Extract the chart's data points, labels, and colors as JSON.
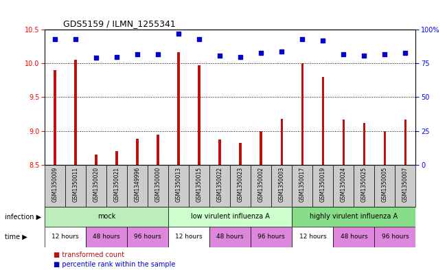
{
  "title": "GDS5159 / ILMN_1255341",
  "samples": [
    "GSM1350009",
    "GSM1350011",
    "GSM1350020",
    "GSM1350021",
    "GSM1349996",
    "GSM1350000",
    "GSM1350013",
    "GSM1350015",
    "GSM1350022",
    "GSM1350023",
    "GSM1350002",
    "GSM1350003",
    "GSM1350017",
    "GSM1350019",
    "GSM1350024",
    "GSM1350025",
    "GSM1350005",
    "GSM1350007"
  ],
  "transformed_count": [
    9.9,
    10.05,
    8.65,
    8.7,
    8.88,
    8.95,
    10.17,
    9.97,
    8.87,
    8.82,
    9.0,
    9.18,
    10.0,
    9.8,
    9.17,
    9.12,
    9.0,
    9.17
  ],
  "percentile_rank": [
    93,
    93,
    79,
    80,
    82,
    82,
    97,
    93,
    81,
    80,
    83,
    84,
    93,
    92,
    82,
    81,
    82,
    83
  ],
  "ylim_left": [
    8.5,
    10.5
  ],
  "ylim_right": [
    0,
    100
  ],
  "yticks_left": [
    8.5,
    9.0,
    9.5,
    10.0,
    10.5
  ],
  "yticks_right": [
    0,
    25,
    50,
    75,
    100
  ],
  "bar_color": "#bb1111",
  "scatter_color": "#0000cc",
  "bar_width": 0.12,
  "infection_groups": [
    {
      "label": "mock",
      "start": 0,
      "end": 6,
      "color": "#bbeebb"
    },
    {
      "label": "low virulent influenza A",
      "start": 6,
      "end": 12,
      "color": "#ccffcc"
    },
    {
      "label": "highly virulent influenza A",
      "start": 12,
      "end": 18,
      "color": "#88dd88"
    }
  ],
  "time_labels_colors": [
    [
      "12 hours",
      "#ffffff"
    ],
    [
      "48 hours",
      "#dd88dd"
    ],
    [
      "96 hours",
      "#dd88dd"
    ],
    [
      "12 hours",
      "#ffffff"
    ],
    [
      "48 hours",
      "#dd88dd"
    ],
    [
      "96 hours",
      "#dd88dd"
    ],
    [
      "12 hours",
      "#ffffff"
    ],
    [
      "48 hours",
      "#dd88dd"
    ],
    [
      "96 hours",
      "#dd88dd"
    ]
  ],
  "sample_box_color": "#cccccc",
  "legend_items": [
    {
      "label": "transformed count",
      "color": "#bb1111"
    },
    {
      "label": "percentile rank within the sample",
      "color": "#0000cc"
    }
  ]
}
